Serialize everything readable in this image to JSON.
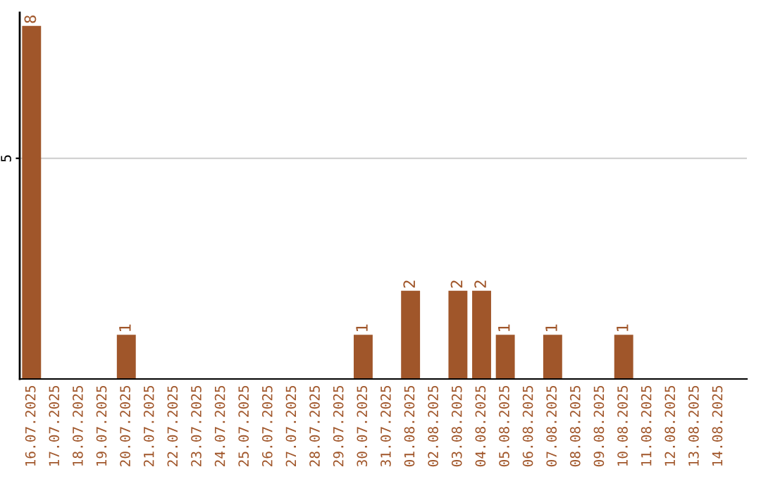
{
  "chart_data": {
    "type": "bar",
    "categories": [
      "16.07.2025",
      "17.07.2025",
      "18.07.2025",
      "19.07.2025",
      "20.07.2025",
      "21.07.2025",
      "22.07.2025",
      "23.07.2025",
      "24.07.2025",
      "25.07.2025",
      "26.07.2025",
      "27.07.2025",
      "28.07.2025",
      "29.07.2025",
      "30.07.2025",
      "31.07.2025",
      "01.08.2025",
      "02.08.2025",
      "03.08.2025",
      "04.08.2025",
      "05.08.2025",
      "06.08.2025",
      "07.08.2025",
      "08.08.2025",
      "09.08.2025",
      "10.08.2025",
      "11.08.2025",
      "12.08.2025",
      "13.08.2025",
      "14.08.2025"
    ],
    "values": [
      8,
      0,
      0,
      0,
      1,
      0,
      0,
      0,
      0,
      0,
      0,
      0,
      0,
      0,
      1,
      0,
      2,
      0,
      2,
      2,
      1,
      0,
      1,
      0,
      0,
      1,
      0,
      0,
      0,
      0
    ],
    "value_labels": [
      "8",
      null,
      null,
      null,
      "1",
      null,
      null,
      null,
      null,
      null,
      null,
      null,
      null,
      null,
      "1",
      null,
      "2",
      null,
      "2",
      "2",
      "1",
      null,
      "1",
      null,
      null,
      "1",
      null,
      null,
      null,
      null
    ],
    "color": "#a0562a",
    "ylim": [
      0,
      8.3
    ],
    "yticks": [
      5
    ],
    "grid": "y"
  }
}
